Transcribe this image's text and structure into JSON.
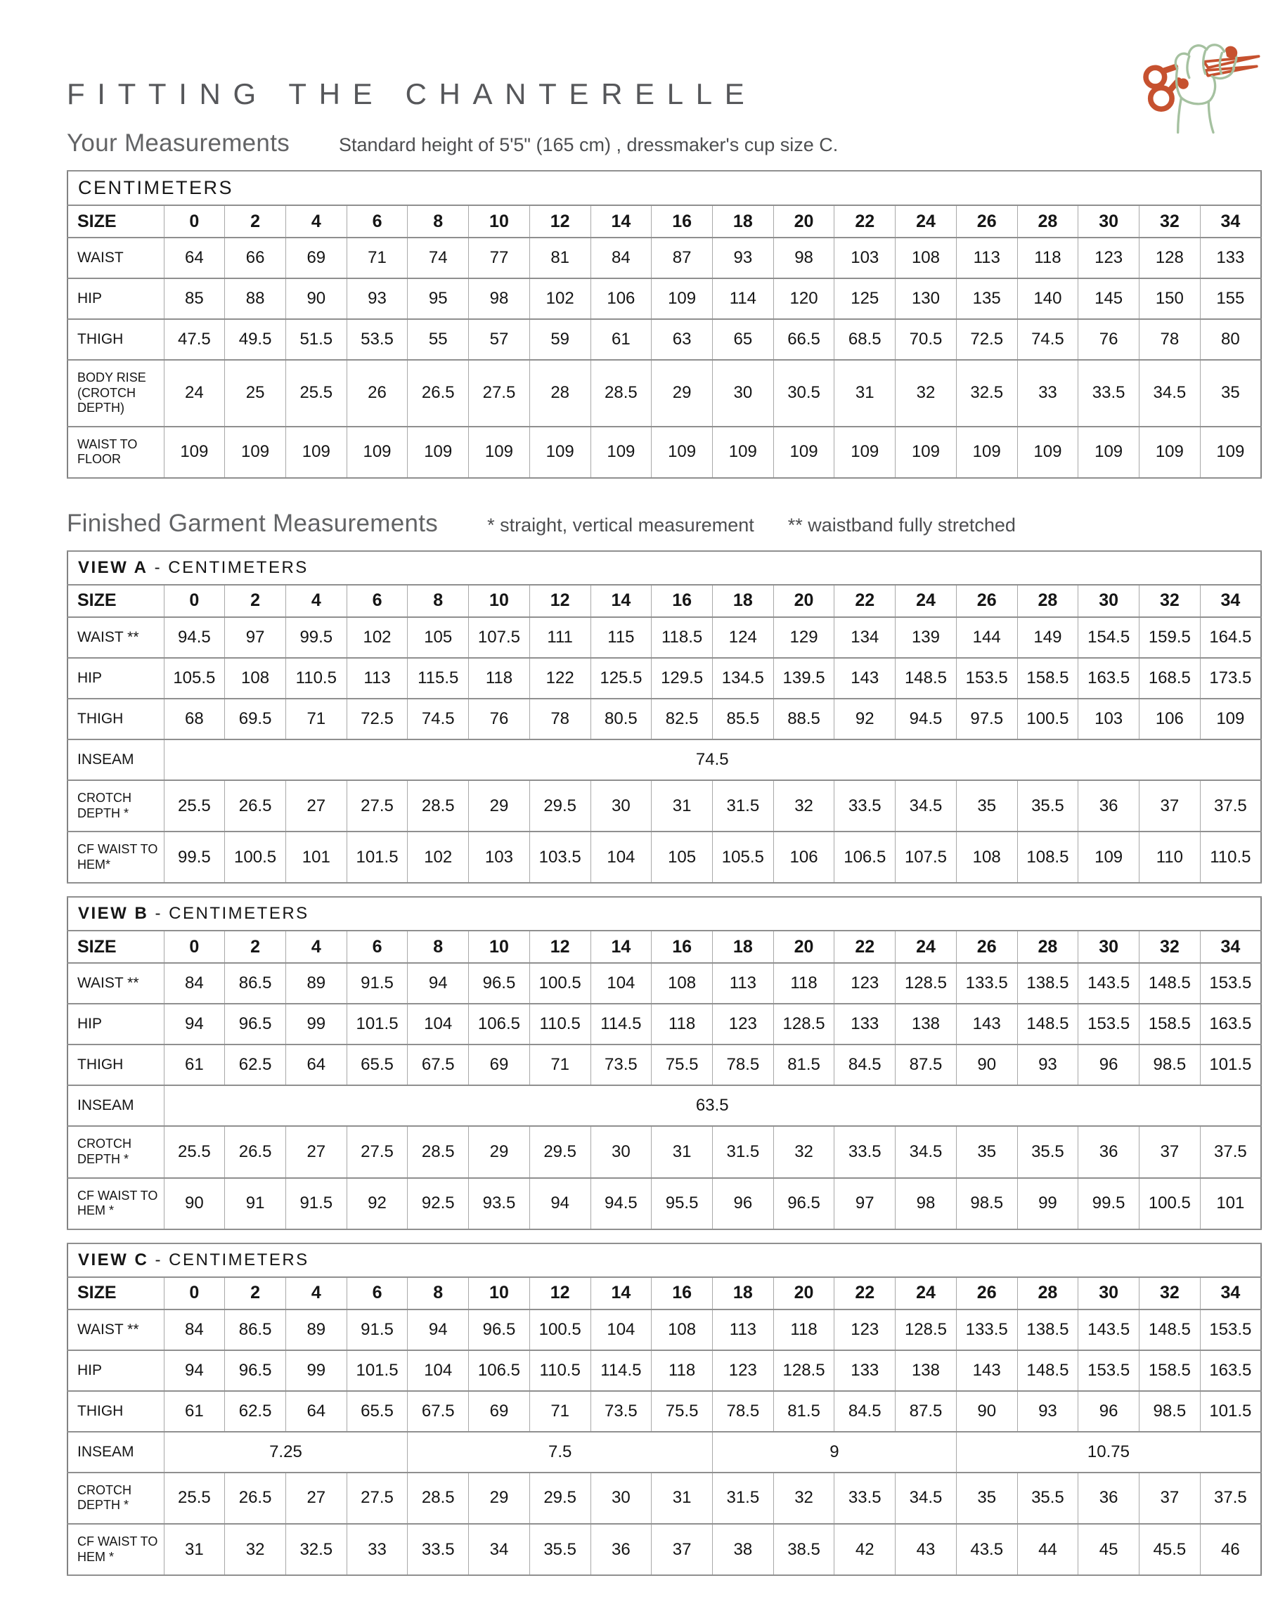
{
  "header": {
    "title": "FITTING THE CHANTERELLE",
    "icon": "hand-holding-scissors-icon"
  },
  "colors": {
    "scissors_orange": "#c6512f",
    "hand_green": "#a5c1a0",
    "heading_gray": "#636466"
  },
  "sections": [
    {
      "heading": "Your Measurements",
      "notes": [
        "Standard height of 5'5\" (165 cm) , dressmaker's cup size C."
      ]
    },
    {
      "heading": "Finished Garment Measurements",
      "notes": [
        "* straight, vertical measurement",
        "** waistband fully stretched"
      ]
    }
  ],
  "size_header_label": "SIZE",
  "sizes": [
    "0",
    "2",
    "4",
    "6",
    "8",
    "10",
    "12",
    "14",
    "16",
    "18",
    "20",
    "22",
    "24",
    "26",
    "28",
    "30",
    "32",
    "34"
  ],
  "tables": [
    {
      "id": "your-measurements",
      "caption_bold": "",
      "caption_rest": "CENTIMETERS",
      "rows": [
        {
          "label": "WAIST",
          "values": [
            "64",
            "66",
            "69",
            "71",
            "74",
            "77",
            "81",
            "84",
            "87",
            "93",
            "98",
            "103",
            "108",
            "113",
            "118",
            "123",
            "128",
            "133"
          ]
        },
        {
          "label": "HIP",
          "values": [
            "85",
            "88",
            "90",
            "93",
            "95",
            "98",
            "102",
            "106",
            "109",
            "114",
            "120",
            "125",
            "130",
            "135",
            "140",
            "145",
            "150",
            "155"
          ]
        },
        {
          "label": "THIGH",
          "values": [
            "47.5",
            "49.5",
            "51.5",
            "53.5",
            "55",
            "57",
            "59",
            "61",
            "63",
            "65",
            "66.5",
            "68.5",
            "70.5",
            "72.5",
            "74.5",
            "76",
            "78",
            "80"
          ]
        },
        {
          "label": "BODY RISE (CROTCH DEPTH)",
          "values": [
            "24",
            "25",
            "25.5",
            "26",
            "26.5",
            "27.5",
            "28",
            "28.5",
            "29",
            "30",
            "30.5",
            "31",
            "32",
            "32.5",
            "33",
            "33.5",
            "34.5",
            "35"
          ]
        },
        {
          "label": "WAIST TO FLOOR",
          "values": [
            "109",
            "109",
            "109",
            "109",
            "109",
            "109",
            "109",
            "109",
            "109",
            "109",
            "109",
            "109",
            "109",
            "109",
            "109",
            "109",
            "109",
            "109"
          ]
        }
      ]
    },
    {
      "id": "view-a",
      "caption_bold": "VIEW A",
      "caption_rest": "- CENTIMETERS",
      "rows": [
        {
          "label": "WAIST **",
          "values": [
            "94.5",
            "97",
            "99.5",
            "102",
            "105",
            "107.5",
            "111",
            "115",
            "118.5",
            "124",
            "129",
            "134",
            "139",
            "144",
            "149",
            "154.5",
            "159.5",
            "164.5"
          ]
        },
        {
          "label": "HIP",
          "values": [
            "105.5",
            "108",
            "110.5",
            "113",
            "115.5",
            "118",
            "122",
            "125.5",
            "129.5",
            "134.5",
            "139.5",
            "143",
            "148.5",
            "153.5",
            "158.5",
            "163.5",
            "168.5",
            "173.5"
          ]
        },
        {
          "label": "THIGH",
          "values": [
            "68",
            "69.5",
            "71",
            "72.5",
            "74.5",
            "76",
            "78",
            "80.5",
            "82.5",
            "85.5",
            "88.5",
            "92",
            "94.5",
            "97.5",
            "100.5",
            "103",
            "106",
            "109"
          ]
        },
        {
          "label": "INSEAM",
          "values": [
            "74.5"
          ],
          "spans": [
            18
          ]
        },
        {
          "label": "CROTCH DEPTH *",
          "values": [
            "25.5",
            "26.5",
            "27",
            "27.5",
            "28.5",
            "29",
            "29.5",
            "30",
            "31",
            "31.5",
            "32",
            "33.5",
            "34.5",
            "35",
            "35.5",
            "36",
            "37",
            "37.5"
          ]
        },
        {
          "label": "CF WAIST TO HEM*",
          "values": [
            "99.5",
            "100.5",
            "101",
            "101.5",
            "102",
            "103",
            "103.5",
            "104",
            "105",
            "105.5",
            "106",
            "106.5",
            "107.5",
            "108",
            "108.5",
            "109",
            "110",
            "110.5"
          ]
        }
      ]
    },
    {
      "id": "view-b",
      "caption_bold": "VIEW B",
      "caption_rest": "- CENTIMETERS",
      "rows": [
        {
          "label": "WAIST **",
          "values": [
            "84",
            "86.5",
            "89",
            "91.5",
            "94",
            "96.5",
            "100.5",
            "104",
            "108",
            "113",
            "118",
            "123",
            "128.5",
            "133.5",
            "138.5",
            "143.5",
            "148.5",
            "153.5"
          ]
        },
        {
          "label": "HIP",
          "values": [
            "94",
            "96.5",
            "99",
            "101.5",
            "104",
            "106.5",
            "110.5",
            "114.5",
            "118",
            "123",
            "128.5",
            "133",
            "138",
            "143",
            "148.5",
            "153.5",
            "158.5",
            "163.5"
          ]
        },
        {
          "label": "THIGH",
          "values": [
            "61",
            "62.5",
            "64",
            "65.5",
            "67.5",
            "69",
            "71",
            "73.5",
            "75.5",
            "78.5",
            "81.5",
            "84.5",
            "87.5",
            "90",
            "93",
            "96",
            "98.5",
            "101.5"
          ]
        },
        {
          "label": "INSEAM",
          "values": [
            "63.5"
          ],
          "spans": [
            18
          ]
        },
        {
          "label": "CROTCH DEPTH *",
          "values": [
            "25.5",
            "26.5",
            "27",
            "27.5",
            "28.5",
            "29",
            "29.5",
            "30",
            "31",
            "31.5",
            "32",
            "33.5",
            "34.5",
            "35",
            "35.5",
            "36",
            "37",
            "37.5"
          ]
        },
        {
          "label": "CF WAIST TO HEM *",
          "values": [
            "90",
            "91",
            "91.5",
            "92",
            "92.5",
            "93.5",
            "94",
            "94.5",
            "95.5",
            "96",
            "96.5",
            "97",
            "98",
            "98.5",
            "99",
            "99.5",
            "100.5",
            "101"
          ]
        }
      ]
    },
    {
      "id": "view-c",
      "caption_bold": "VIEW C",
      "caption_rest": "- CENTIMETERS",
      "rows": [
        {
          "label": "WAIST **",
          "values": [
            "84",
            "86.5",
            "89",
            "91.5",
            "94",
            "96.5",
            "100.5",
            "104",
            "108",
            "113",
            "118",
            "123",
            "128.5",
            "133.5",
            "138.5",
            "143.5",
            "148.5",
            "153.5"
          ]
        },
        {
          "label": "HIP",
          "values": [
            "94",
            "96.5",
            "99",
            "101.5",
            "104",
            "106.5",
            "110.5",
            "114.5",
            "118",
            "123",
            "128.5",
            "133",
            "138",
            "143",
            "148.5",
            "153.5",
            "158.5",
            "163.5"
          ]
        },
        {
          "label": "THIGH",
          "values": [
            "61",
            "62.5",
            "64",
            "65.5",
            "67.5",
            "69",
            "71",
            "73.5",
            "75.5",
            "78.5",
            "81.5",
            "84.5",
            "87.5",
            "90",
            "93",
            "96",
            "98.5",
            "101.5"
          ]
        },
        {
          "label": "INSEAM",
          "values": [
            "7.25",
            "7.5",
            "9",
            "10.75"
          ],
          "spans": [
            4,
            5,
            4,
            5
          ]
        },
        {
          "label": "CROTCH DEPTH *",
          "values": [
            "25.5",
            "26.5",
            "27",
            "27.5",
            "28.5",
            "29",
            "29.5",
            "30",
            "31",
            "31.5",
            "32",
            "33.5",
            "34.5",
            "35",
            "35.5",
            "36",
            "37",
            "37.5"
          ]
        },
        {
          "label": "CF WAIST TO HEM *",
          "values": [
            "31",
            "32",
            "32.5",
            "33",
            "33.5",
            "34",
            "35.5",
            "36",
            "37",
            "38",
            "38.5",
            "42",
            "43",
            "43.5",
            "44",
            "45",
            "45.5",
            "46"
          ]
        }
      ]
    }
  ]
}
